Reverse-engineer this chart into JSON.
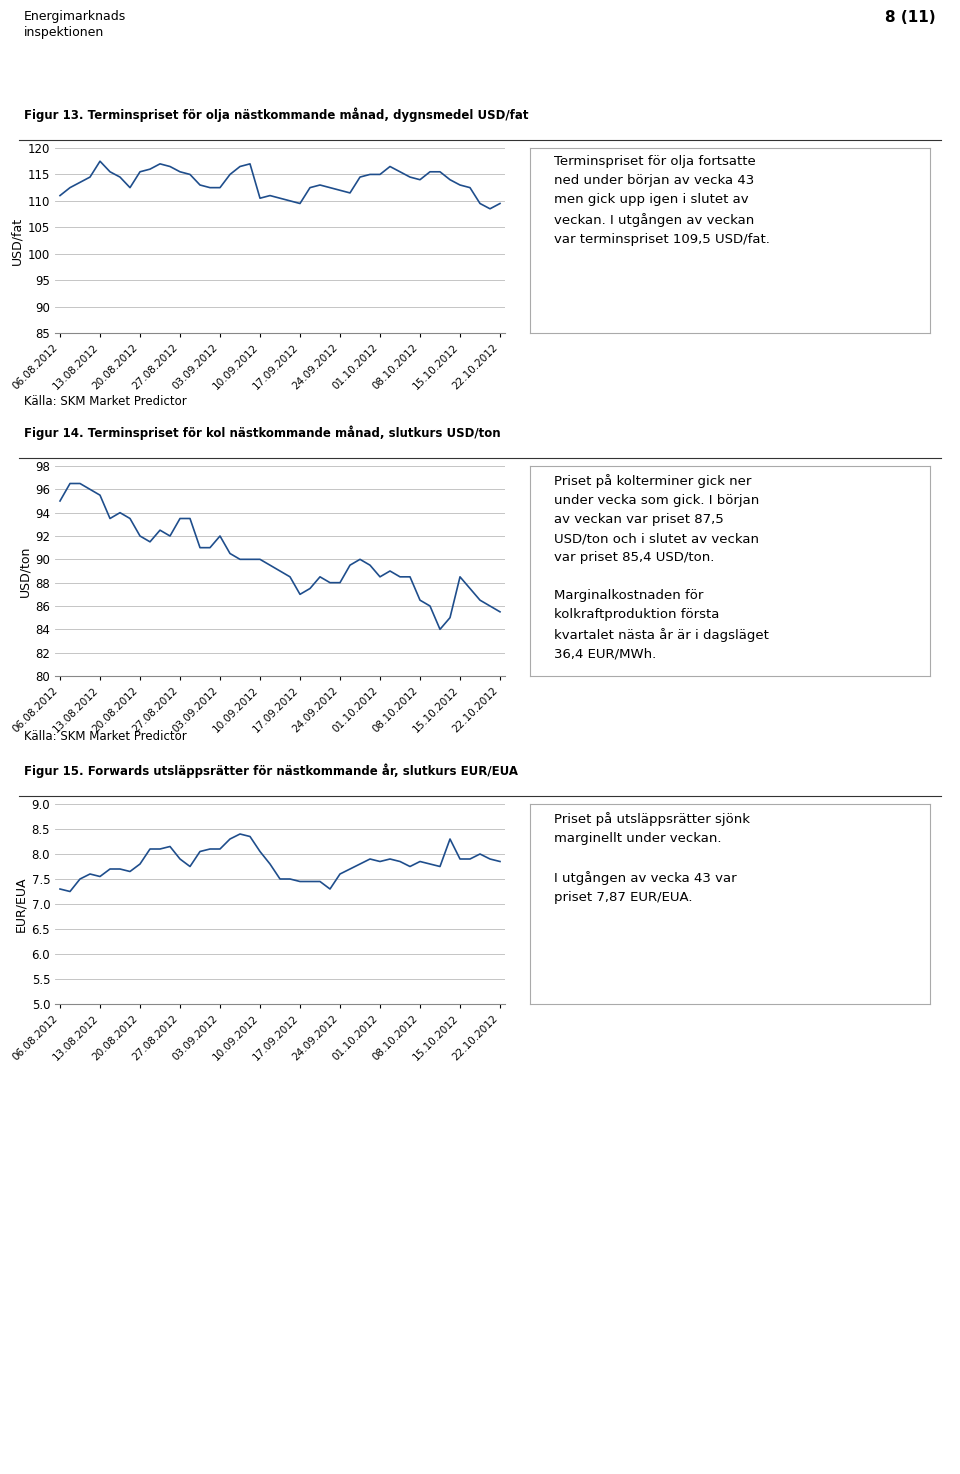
{
  "fig13_title": "Figur 13. Terminspriset för olja nästkommande månad, dygnsmedel USD/fat",
  "fig14_title": "Figur 14. Terminspriset för kol nästkommande månad, slutkurs USD/ton",
  "fig15_title": "Figur 15. Forwards utsläppsrätter för nästkommande år, slutkurs EUR/EUA",
  "header_title": "8 (11)",
  "source_text": "Källa: SKM Market Predictor",
  "dates": [
    "06.08.2012",
    "13.08.2012",
    "20.08.2012",
    "27.08.2012",
    "03.09.2012",
    "10.09.2012",
    "17.09.2012",
    "24.09.2012",
    "01.10.2012",
    "08.10.2012",
    "15.10.2012",
    "22.10.2012"
  ],
  "fig13_ylabel": "USD/fat",
  "fig13_ylim": [
    85,
    120
  ],
  "fig13_yticks": [
    85,
    90,
    95,
    100,
    105,
    110,
    115,
    120
  ],
  "fig13_values": [
    111.0,
    112.5,
    113.5,
    114.5,
    117.5,
    115.5,
    114.5,
    112.5,
    115.5,
    116.0,
    117.0,
    116.5,
    115.5,
    115.0,
    113.0,
    112.5,
    112.5,
    115.0,
    116.5,
    117.0,
    110.5,
    111.0,
    110.5,
    110.0,
    109.5,
    112.5,
    113.0,
    112.5,
    112.0,
    111.5,
    114.5,
    115.0,
    115.0,
    116.5,
    115.5,
    114.5,
    114.0,
    115.5,
    115.5,
    114.0,
    113.0,
    112.5,
    109.5,
    108.5,
    109.5
  ],
  "fig13_text": "Terminspriset för olja fortsatte\nned under början av vecka 43\nmen gick upp igen i slutet av\nveckan. I utgången av veckan\nvar terminspriset 109,5 USD/fat.",
  "fig14_ylabel": "USD/ton",
  "fig14_ylim": [
    80,
    98
  ],
  "fig14_yticks": [
    80,
    82,
    84,
    86,
    88,
    90,
    92,
    94,
    96,
    98
  ],
  "fig14_values": [
    95.0,
    96.5,
    96.5,
    96.0,
    95.5,
    93.5,
    94.0,
    93.5,
    92.0,
    91.5,
    92.5,
    92.0,
    93.5,
    93.5,
    91.0,
    91.0,
    92.0,
    90.5,
    90.0,
    90.0,
    90.0,
    89.5,
    89.0,
    88.5,
    87.0,
    87.5,
    88.5,
    88.0,
    88.0,
    89.5,
    90.0,
    89.5,
    88.5,
    89.0,
    88.5,
    88.5,
    86.5,
    86.0,
    84.0,
    85.0,
    88.5,
    87.5,
    86.5,
    86.0,
    85.5
  ],
  "fig14_text": "Priset på kolterminer gick ner\nunder vecka som gick. I början\nav veckan var priset 87,5\nUSD/ton och i slutet av veckan\nvar priset 85,4 USD/ton.\n\nMarginalkostnaden för\nkolkraftproduktion första\nkvartalet nästa år är i dagsläget\n36,4 EUR/MWh.",
  "fig15_ylabel": "EUR/EUA",
  "fig15_ylim": [
    5.0,
    9.0
  ],
  "fig15_yticks": [
    5.0,
    5.5,
    6.0,
    6.5,
    7.0,
    7.5,
    8.0,
    8.5,
    9.0
  ],
  "fig15_values": [
    7.3,
    7.25,
    7.5,
    7.6,
    7.55,
    7.7,
    7.7,
    7.65,
    7.8,
    8.1,
    8.1,
    8.15,
    7.9,
    7.75,
    8.05,
    8.1,
    8.1,
    8.3,
    8.4,
    8.35,
    8.05,
    7.8,
    7.5,
    7.5,
    7.45,
    7.45,
    7.45,
    7.3,
    7.6,
    7.7,
    7.8,
    7.9,
    7.85,
    7.9,
    7.85,
    7.75,
    7.85,
    7.8,
    7.75,
    8.3,
    7.9,
    7.9,
    8.0,
    7.9,
    7.85
  ],
  "fig15_text": "Priset på utsläppsrätter sjönk\nmarginellt under veckan.\n\nI utgången av vecka 43 var\npriset 7,87 EUR/EUA.",
  "line_color": "#1F4E8C",
  "bg_color": "#FFFFFF",
  "plot_bg": "#FFFFFF",
  "grid_color": "#BBBBBB"
}
